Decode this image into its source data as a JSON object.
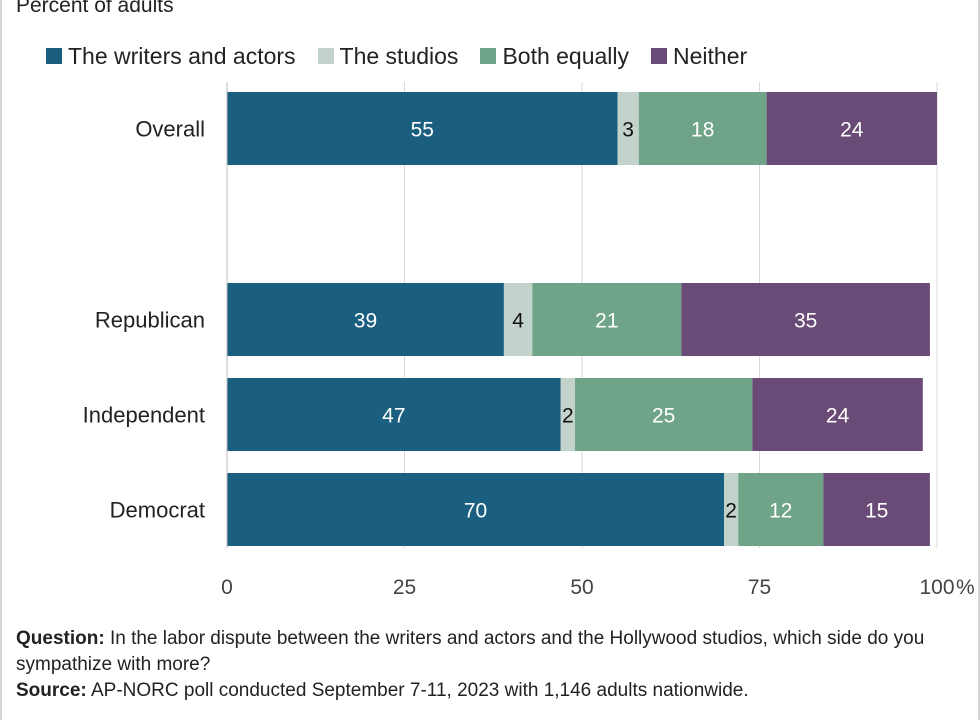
{
  "subtitle": "Percent of adults",
  "legend": [
    {
      "label": "The writers and actors",
      "color": "#1a5e80"
    },
    {
      "label": "The studios",
      "color": "#c3d3cb"
    },
    {
      "label": "Both equally",
      "color": "#6fa488"
    },
    {
      "label": "Neither",
      "color": "#6a4a76"
    }
  ],
  "footnote": {
    "question_label": "Question:",
    "question_text": " In the labor dispute between the writers and actors and the Hollywood studios, which side do you sympathize with more?",
    "source_label": "Source:",
    "source_text": " AP-NORC poll conducted September 7-11, 2023 with 1,146 adults nationwide."
  },
  "chart_data": {
    "type": "bar",
    "orientation": "horizontal",
    "stacked": true,
    "title": "",
    "xlabel": "",
    "ylabel": "",
    "xlim": [
      0,
      100
    ],
    "x_ticks": [
      "0",
      "25",
      "50",
      "75",
      "100"
    ],
    "x_tick_values": [
      0,
      25,
      50,
      75,
      100
    ],
    "x_unit": "%",
    "grid": true,
    "legend_position": "top",
    "categories": [
      "Overall",
      "Republican",
      "Independent",
      "Democrat"
    ],
    "series": [
      {
        "name": "The writers and actors",
        "color": "#1a5e80",
        "label_color": "#ffffff",
        "values": [
          55,
          39,
          47,
          70
        ]
      },
      {
        "name": "The studios",
        "color": "#c3d3cb",
        "label_color": "#111111",
        "values": [
          3,
          4,
          2,
          2
        ]
      },
      {
        "name": "Both equally",
        "color": "#6fa488",
        "label_color": "#ffffff",
        "values": [
          18,
          21,
          25,
          12
        ]
      },
      {
        "name": "Neither",
        "color": "#6a4a76",
        "label_color": "#ffffff",
        "values": [
          24,
          35,
          24,
          15
        ]
      }
    ]
  }
}
